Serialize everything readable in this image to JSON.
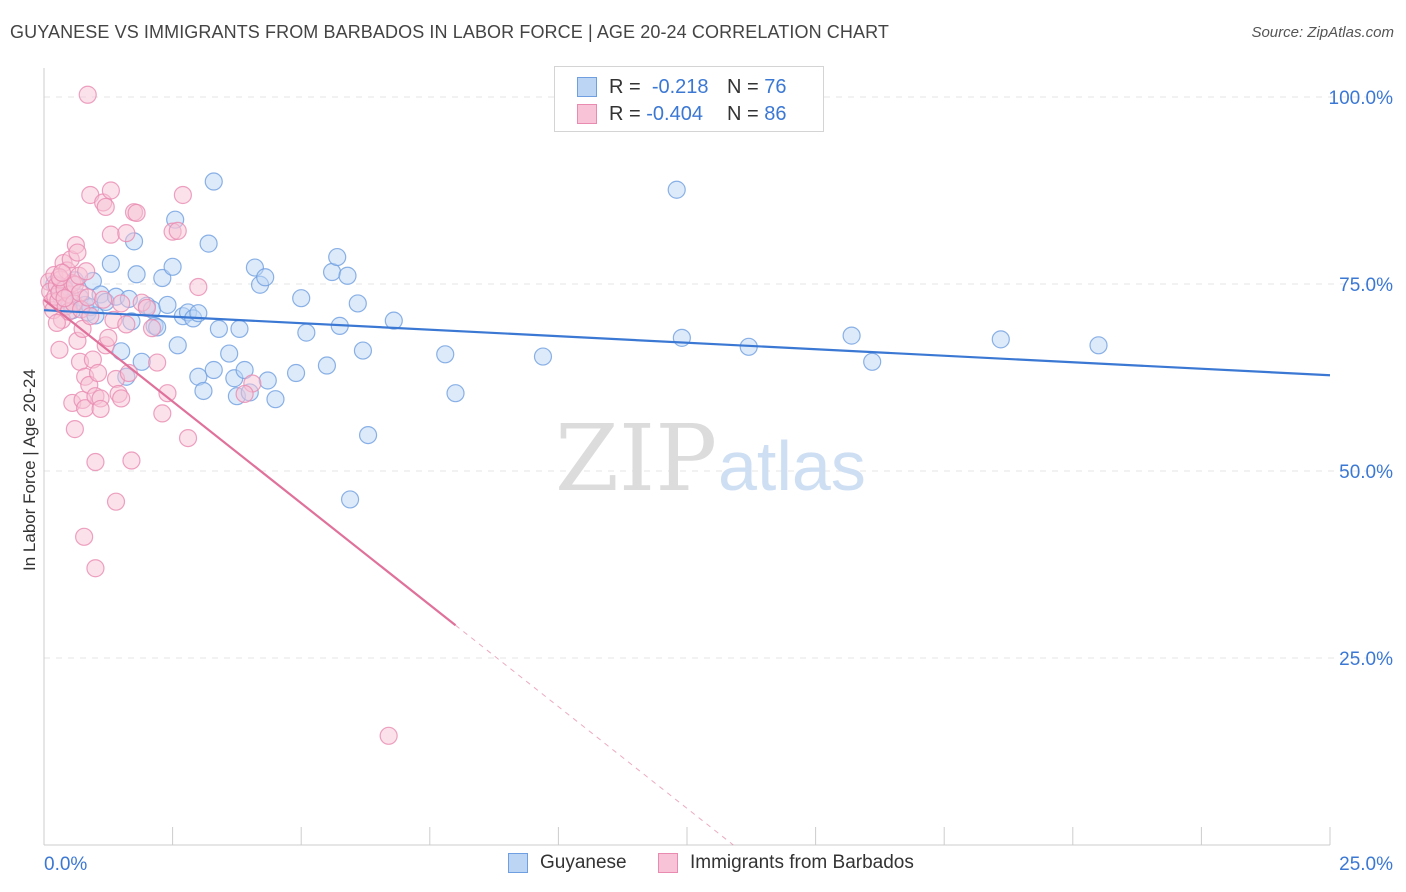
{
  "title": "GUYANESE VS IMMIGRANTS FROM BARBADOS IN LABOR FORCE | AGE 20-24 CORRELATION CHART",
  "source": "Source: ZipAtlas.com",
  "watermark": {
    "zip": "ZIP",
    "atlas": "atlas"
  },
  "legend": {
    "rows": [
      {
        "r_label": "R =",
        "r_value": "-0.218",
        "n_label": "N =",
        "n_value": "76",
        "fill": "#bcd5f5",
        "stroke": "#6f9fe0"
      },
      {
        "r_label": "R =",
        "r_value": "-0.404",
        "n_label": "N =",
        "n_value": "86",
        "fill": "#f8c3d6",
        "stroke": "#e98bb0"
      }
    ]
  },
  "bottom_legend": [
    {
      "label": "Guyanese",
      "fill": "#bcd5f5",
      "stroke": "#6f9fe0"
    },
    {
      "label": "Immigrants from Barbados",
      "fill": "#f8c3d6",
      "stroke": "#e98bb0"
    }
  ],
  "chart_data": {
    "type": "scatter",
    "ylabel": "In Labor Force | Age 20-24",
    "xlim": [
      0,
      25
    ],
    "ylim": [
      0,
      105
    ],
    "x_tick_labels": [
      {
        "value": 0,
        "label": "0.0%"
      },
      {
        "value": 25,
        "label": "25.0%"
      }
    ],
    "y_tick_labels": [
      {
        "value": 100,
        "label": "100.0%"
      },
      {
        "value": 75,
        "label": "75.0%"
      },
      {
        "value": 50,
        "label": "50.0%"
      },
      {
        "value": 25,
        "label": "25.0%"
      }
    ],
    "grid": true,
    "colors": {
      "blue": "#3b78d4",
      "pink": "#e0719a",
      "blue_fill": "#bcd5f5",
      "pink_fill": "#f8c3d6"
    },
    "series": [
      {
        "name": "Guyanese",
        "color": "#3b78d4",
        "trend": {
          "x": [
            0,
            25
          ],
          "y": [
            71.5,
            62.8
          ],
          "x_solid_end": 25
        },
        "points": [
          [
            0.2,
            75.0
          ],
          [
            0.3,
            73.9
          ],
          [
            0.35,
            73.0
          ],
          [
            0.4,
            74.5
          ],
          [
            0.5,
            72.5
          ],
          [
            0.55,
            71.5
          ],
          [
            0.6,
            75.5
          ],
          [
            0.7,
            73.2
          ],
          [
            0.8,
            72.2
          ],
          [
            0.85,
            71.2
          ],
          [
            0.9,
            71.9
          ],
          [
            0.95,
            75.4
          ],
          [
            1.0,
            70.8
          ],
          [
            1.1,
            73.6
          ],
          [
            1.2,
            72.6
          ],
          [
            1.3,
            77.7
          ],
          [
            1.4,
            73.3
          ],
          [
            1.5,
            66.0
          ],
          [
            1.6,
            62.6
          ],
          [
            1.65,
            73.0
          ],
          [
            1.7,
            70.0
          ],
          [
            1.75,
            80.7
          ],
          [
            1.8,
            76.3
          ],
          [
            1.9,
            64.6
          ],
          [
            2.0,
            72.1
          ],
          [
            2.1,
            71.6
          ],
          [
            2.15,
            69.4
          ],
          [
            2.2,
            69.2
          ],
          [
            2.3,
            75.8
          ],
          [
            2.4,
            72.2
          ],
          [
            2.5,
            77.3
          ],
          [
            2.55,
            83.6
          ],
          [
            2.6,
            66.8
          ],
          [
            2.7,
            70.7
          ],
          [
            2.8,
            71.2
          ],
          [
            2.9,
            70.4
          ],
          [
            3.0,
            71.1
          ],
          [
            3.0,
            62.6
          ],
          [
            3.1,
            60.7
          ],
          [
            3.2,
            80.4
          ],
          [
            3.3,
            63.5
          ],
          [
            3.3,
            88.7
          ],
          [
            3.4,
            69.0
          ],
          [
            3.6,
            65.7
          ],
          [
            3.7,
            62.4
          ],
          [
            3.75,
            60.0
          ],
          [
            3.8,
            69.0
          ],
          [
            3.9,
            63.5
          ],
          [
            4.0,
            60.5
          ],
          [
            4.1,
            77.2
          ],
          [
            4.2,
            74.9
          ],
          [
            4.3,
            75.9
          ],
          [
            4.35,
            62.1
          ],
          [
            4.5,
            59.6
          ],
          [
            4.9,
            63.1
          ],
          [
            5.0,
            73.1
          ],
          [
            5.1,
            68.5
          ],
          [
            5.5,
            64.1
          ],
          [
            5.6,
            76.6
          ],
          [
            5.7,
            78.6
          ],
          [
            5.75,
            69.4
          ],
          [
            5.9,
            76.1
          ],
          [
            5.95,
            46.2
          ],
          [
            6.1,
            72.4
          ],
          [
            6.2,
            66.1
          ],
          [
            6.3,
            54.8
          ],
          [
            6.8,
            70.1
          ],
          [
            7.8,
            65.6
          ],
          [
            8.0,
            60.4
          ],
          [
            9.7,
            65.3
          ],
          [
            12.3,
            87.6
          ],
          [
            12.4,
            67.8
          ],
          [
            13.7,
            66.6
          ],
          [
            15.7,
            68.1
          ],
          [
            16.1,
            64.6
          ],
          [
            18.6,
            67.6
          ],
          [
            20.5,
            66.8
          ]
        ]
      },
      {
        "name": "Immigrants from Barbados",
        "color": "#e0719a",
        "trend": {
          "x": [
            0,
            13.4
          ],
          "y": [
            72.9,
            0
          ],
          "x_solid_end": 8.0
        },
        "points": [
          [
            0.1,
            75.3
          ],
          [
            0.12,
            74.0
          ],
          [
            0.15,
            72.6
          ],
          [
            0.18,
            71.5
          ],
          [
            0.2,
            76.2
          ],
          [
            0.22,
            73.3
          ],
          [
            0.25,
            74.8
          ],
          [
            0.28,
            72.8
          ],
          [
            0.3,
            73.9
          ],
          [
            0.3,
            66.2
          ],
          [
            0.32,
            75.6
          ],
          [
            0.35,
            70.2
          ],
          [
            0.38,
            77.8
          ],
          [
            0.4,
            74.3
          ],
          [
            0.42,
            72.0
          ],
          [
            0.45,
            76.8
          ],
          [
            0.48,
            71.3
          ],
          [
            0.5,
            73.6
          ],
          [
            0.52,
            78.3
          ],
          [
            0.55,
            75.1
          ],
          [
            0.55,
            59.1
          ],
          [
            0.58,
            72.4
          ],
          [
            0.6,
            74.9
          ],
          [
            0.6,
            55.6
          ],
          [
            0.62,
            80.2
          ],
          [
            0.65,
            67.4
          ],
          [
            0.65,
            79.2
          ],
          [
            0.68,
            76.1
          ],
          [
            0.7,
            73.8
          ],
          [
            0.7,
            64.6
          ],
          [
            0.72,
            71.6
          ],
          [
            0.75,
            59.5
          ],
          [
            0.75,
            69.0
          ],
          [
            0.78,
            41.2
          ],
          [
            0.8,
            58.4
          ],
          [
            0.8,
            62.6
          ],
          [
            0.82,
            76.7
          ],
          [
            0.85,
            73.2
          ],
          [
            0.88,
            61.5
          ],
          [
            0.9,
            86.9
          ],
          [
            0.9,
            70.7
          ],
          [
            0.95,
            64.9
          ],
          [
            1.0,
            51.2
          ],
          [
            1.0,
            37.0
          ],
          [
            1.0,
            60.0
          ],
          [
            1.05,
            63.1
          ],
          [
            1.1,
            59.7
          ],
          [
            1.1,
            58.3
          ],
          [
            1.15,
            85.9
          ],
          [
            1.15,
            72.9
          ],
          [
            1.2,
            85.3
          ],
          [
            1.2,
            66.8
          ],
          [
            1.25,
            67.8
          ],
          [
            1.3,
            87.5
          ],
          [
            1.3,
            81.6
          ],
          [
            1.35,
            70.2
          ],
          [
            1.4,
            62.3
          ],
          [
            1.45,
            60.3
          ],
          [
            1.5,
            59.7
          ],
          [
            1.5,
            72.4
          ],
          [
            0.85,
            100.3
          ],
          [
            1.4,
            45.9
          ],
          [
            1.6,
            81.8
          ],
          [
            1.6,
            69.6
          ],
          [
            1.65,
            63.1
          ],
          [
            1.7,
            51.4
          ],
          [
            1.75,
            84.6
          ],
          [
            1.8,
            84.5
          ],
          [
            1.9,
            72.5
          ],
          [
            2.0,
            71.8
          ],
          [
            2.1,
            69.1
          ],
          [
            2.2,
            64.5
          ],
          [
            2.3,
            57.7
          ],
          [
            2.4,
            60.4
          ],
          [
            2.5,
            82.0
          ],
          [
            2.6,
            82.1
          ],
          [
            2.7,
            86.9
          ],
          [
            2.8,
            54.4
          ],
          [
            3.0,
            74.6
          ],
          [
            4.05,
            61.7
          ],
          [
            3.9,
            60.3
          ],
          [
            0.4,
            73.1
          ],
          [
            0.3,
            75.9
          ],
          [
            0.25,
            69.8
          ],
          [
            0.35,
            76.5
          ],
          [
            6.7,
            14.6
          ]
        ]
      }
    ]
  }
}
